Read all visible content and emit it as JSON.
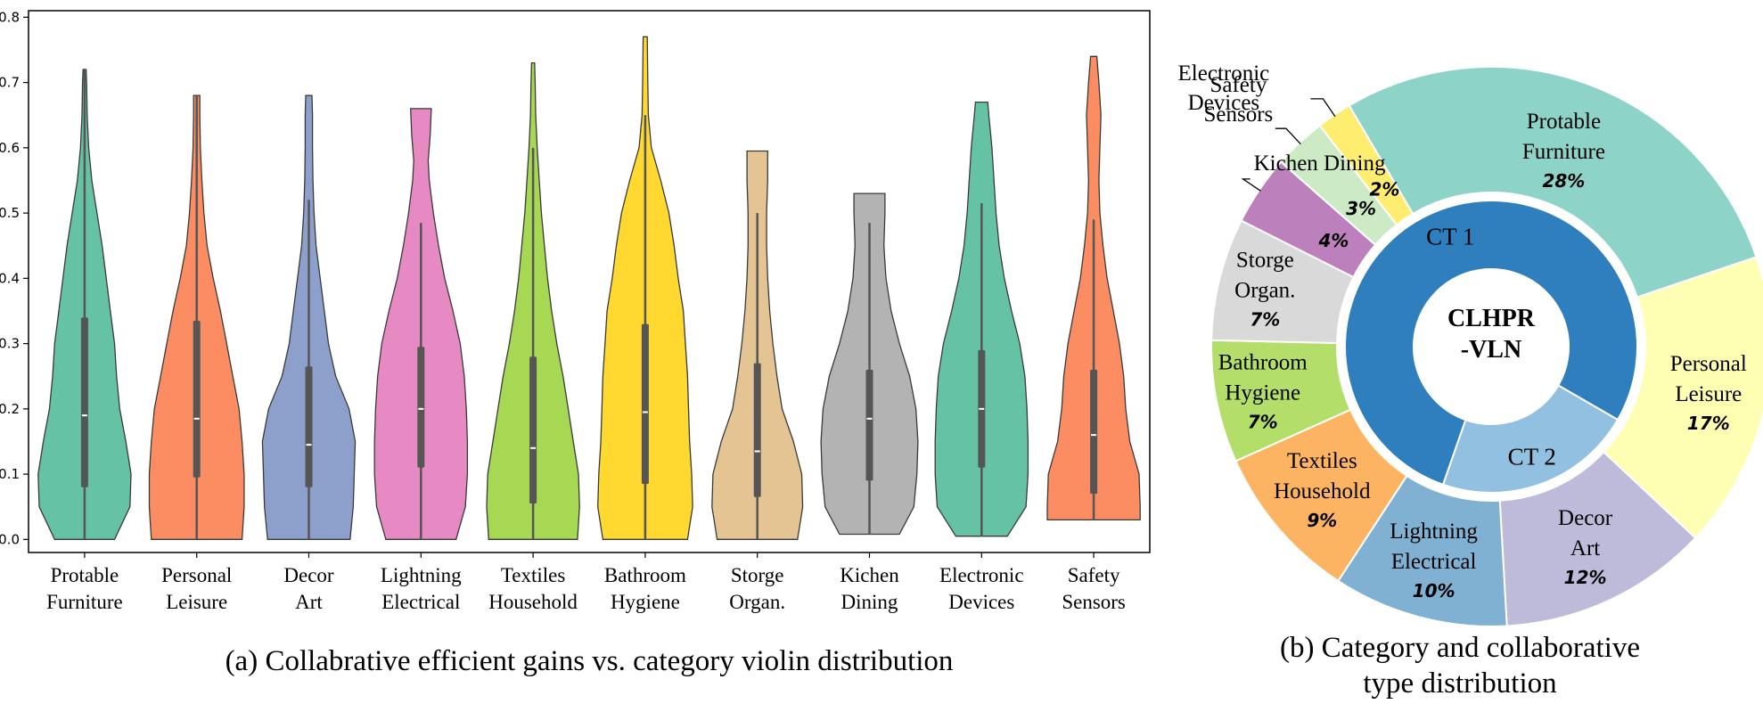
{
  "chart_data": [
    {
      "type": "violin",
      "caption": "(a) Collabrative efficient gains vs. category violin distribution",
      "ylim": [
        -0.02,
        0.81
      ],
      "yticks": [
        "0.0",
        "0.1",
        "0.2",
        "0.3",
        "0.4",
        "0.5",
        "0.6",
        "0.7",
        "0.8"
      ],
      "categories": [
        {
          "label": [
            "Protable",
            "Furniture"
          ],
          "color": "#66c2a5",
          "min": 0.0,
          "max": 0.72,
          "q1": 0.08,
          "q3": 0.34,
          "median": 0.19,
          "whisker_low": 0.0,
          "whisker_high": 0.72,
          "profile": [
            [
              0.0,
              0.58
            ],
            [
              0.05,
              0.88
            ],
            [
              0.1,
              0.9
            ],
            [
              0.15,
              0.8
            ],
            [
              0.2,
              0.68
            ],
            [
              0.25,
              0.62
            ],
            [
              0.3,
              0.58
            ],
            [
              0.35,
              0.5
            ],
            [
              0.4,
              0.42
            ],
            [
              0.45,
              0.34
            ],
            [
              0.5,
              0.24
            ],
            [
              0.55,
              0.14
            ],
            [
              0.6,
              0.08
            ],
            [
              0.65,
              0.05
            ],
            [
              0.7,
              0.04
            ],
            [
              0.72,
              0.03
            ]
          ]
        },
        {
          "label": [
            "Personal",
            "Leisure"
          ],
          "color": "#fc8d62",
          "min": 0.0,
          "max": 0.68,
          "q1": 0.095,
          "q3": 0.335,
          "median": 0.185,
          "whisker_low": 0.0,
          "whisker_high": 0.68,
          "profile": [
            [
              0.0,
              0.88
            ],
            [
              0.05,
              0.92
            ],
            [
              0.1,
              0.92
            ],
            [
              0.15,
              0.88
            ],
            [
              0.2,
              0.82
            ],
            [
              0.25,
              0.7
            ],
            [
              0.3,
              0.58
            ],
            [
              0.35,
              0.46
            ],
            [
              0.4,
              0.32
            ],
            [
              0.45,
              0.2
            ],
            [
              0.5,
              0.14
            ],
            [
              0.55,
              0.1
            ],
            [
              0.6,
              0.07
            ],
            [
              0.65,
              0.06
            ],
            [
              0.68,
              0.06
            ]
          ]
        },
        {
          "label": [
            "Decor",
            "Art"
          ],
          "color": "#8da0cb",
          "min": 0.0,
          "max": 0.68,
          "q1": 0.08,
          "q3": 0.265,
          "median": 0.145,
          "whisker_low": 0.0,
          "whisker_high": 0.52,
          "profile": [
            [
              0.0,
              0.8
            ],
            [
              0.05,
              0.86
            ],
            [
              0.1,
              0.88
            ],
            [
              0.15,
              0.9
            ],
            [
              0.2,
              0.78
            ],
            [
              0.25,
              0.52
            ],
            [
              0.3,
              0.38
            ],
            [
              0.35,
              0.3
            ],
            [
              0.4,
              0.22
            ],
            [
              0.45,
              0.14
            ],
            [
              0.5,
              0.1
            ],
            [
              0.55,
              0.08
            ],
            [
              0.6,
              0.07
            ],
            [
              0.65,
              0.07
            ],
            [
              0.68,
              0.06
            ]
          ]
        },
        {
          "label": [
            "Lightning",
            "Electrical"
          ],
          "color": "#e78ac3",
          "min": 0.0,
          "max": 0.66,
          "q1": 0.11,
          "q3": 0.295,
          "median": 0.2,
          "whisker_low": 0.0,
          "whisker_high": 0.485,
          "profile": [
            [
              0.0,
              0.68
            ],
            [
              0.05,
              0.86
            ],
            [
              0.1,
              0.9
            ],
            [
              0.15,
              0.9
            ],
            [
              0.2,
              0.88
            ],
            [
              0.25,
              0.84
            ],
            [
              0.3,
              0.76
            ],
            [
              0.35,
              0.62
            ],
            [
              0.4,
              0.46
            ],
            [
              0.45,
              0.34
            ],
            [
              0.5,
              0.24
            ],
            [
              0.55,
              0.16
            ],
            [
              0.58,
              0.14
            ],
            [
              0.62,
              0.18
            ],
            [
              0.66,
              0.2
            ]
          ]
        },
        {
          "label": [
            "Textiles",
            "Household"
          ],
          "color": "#a6d854",
          "min": 0.0,
          "max": 0.73,
          "q1": 0.055,
          "q3": 0.28,
          "median": 0.14,
          "whisker_low": 0.0,
          "whisker_high": 0.6,
          "profile": [
            [
              0.0,
              0.86
            ],
            [
              0.05,
              0.9
            ],
            [
              0.1,
              0.88
            ],
            [
              0.15,
              0.78
            ],
            [
              0.2,
              0.68
            ],
            [
              0.25,
              0.58
            ],
            [
              0.3,
              0.46
            ],
            [
              0.35,
              0.36
            ],
            [
              0.4,
              0.28
            ],
            [
              0.45,
              0.22
            ],
            [
              0.5,
              0.16
            ],
            [
              0.55,
              0.12
            ],
            [
              0.6,
              0.08
            ],
            [
              0.65,
              0.05
            ],
            [
              0.7,
              0.04
            ],
            [
              0.73,
              0.03
            ]
          ]
        },
        {
          "label": [
            "Bathroom",
            "Hygiene"
          ],
          "color": "#ffd92f",
          "min": 0.0,
          "max": 0.77,
          "q1": 0.085,
          "q3": 0.33,
          "median": 0.195,
          "whisker_low": 0.0,
          "whisker_high": 0.65,
          "profile": [
            [
              0.0,
              0.82
            ],
            [
              0.05,
              0.92
            ],
            [
              0.1,
              0.9
            ],
            [
              0.15,
              0.86
            ],
            [
              0.2,
              0.84
            ],
            [
              0.25,
              0.82
            ],
            [
              0.3,
              0.78
            ],
            [
              0.35,
              0.74
            ],
            [
              0.4,
              0.64
            ],
            [
              0.45,
              0.56
            ],
            [
              0.5,
              0.46
            ],
            [
              0.55,
              0.3
            ],
            [
              0.6,
              0.12
            ],
            [
              0.65,
              0.06
            ],
            [
              0.7,
              0.05
            ],
            [
              0.77,
              0.04
            ]
          ]
        },
        {
          "label": [
            "Storge",
            "Organ."
          ],
          "color": "#e5c494",
          "min": 0.0,
          "max": 0.595,
          "q1": 0.065,
          "q3": 0.27,
          "median": 0.135,
          "whisker_low": 0.0,
          "whisker_high": 0.5,
          "profile": [
            [
              0.0,
              0.78
            ],
            [
              0.05,
              0.88
            ],
            [
              0.1,
              0.86
            ],
            [
              0.15,
              0.7
            ],
            [
              0.2,
              0.48
            ],
            [
              0.25,
              0.38
            ],
            [
              0.3,
              0.3
            ],
            [
              0.35,
              0.24
            ],
            [
              0.4,
              0.2
            ],
            [
              0.45,
              0.18
            ],
            [
              0.5,
              0.18
            ],
            [
              0.55,
              0.2
            ],
            [
              0.595,
              0.2
            ]
          ]
        },
        {
          "label": [
            "Kichen",
            "Dining"
          ],
          "color": "#b3b3b3",
          "min": 0.008,
          "max": 0.53,
          "q1": 0.09,
          "q3": 0.26,
          "median": 0.185,
          "whisker_low": 0.008,
          "whisker_high": 0.485,
          "profile": [
            [
              0.008,
              0.58
            ],
            [
              0.05,
              0.86
            ],
            [
              0.1,
              0.92
            ],
            [
              0.15,
              0.94
            ],
            [
              0.2,
              0.9
            ],
            [
              0.25,
              0.78
            ],
            [
              0.3,
              0.58
            ],
            [
              0.35,
              0.42
            ],
            [
              0.4,
              0.32
            ],
            [
              0.45,
              0.28
            ],
            [
              0.5,
              0.3
            ],
            [
              0.53,
              0.3
            ]
          ]
        },
        {
          "label": [
            "Electronic",
            "Devices"
          ],
          "color": "#66c2a5",
          "min": 0.005,
          "max": 0.67,
          "q1": 0.11,
          "q3": 0.29,
          "median": 0.2,
          "whisker_low": 0.005,
          "whisker_high": 0.515,
          "profile": [
            [
              0.005,
              0.5
            ],
            [
              0.05,
              0.86
            ],
            [
              0.1,
              0.9
            ],
            [
              0.15,
              0.9
            ],
            [
              0.2,
              0.88
            ],
            [
              0.25,
              0.84
            ],
            [
              0.3,
              0.74
            ],
            [
              0.35,
              0.58
            ],
            [
              0.4,
              0.44
            ],
            [
              0.45,
              0.34
            ],
            [
              0.5,
              0.28
            ],
            [
              0.55,
              0.24
            ],
            [
              0.6,
              0.2
            ],
            [
              0.65,
              0.14
            ],
            [
              0.67,
              0.12
            ]
          ]
        },
        {
          "label": [
            "Safety",
            "Sensors"
          ],
          "color": "#fc8d62",
          "min": 0.03,
          "max": 0.74,
          "q1": 0.07,
          "q3": 0.26,
          "median": 0.16,
          "whisker_low": 0.03,
          "whisker_high": 0.49,
          "profile": [
            [
              0.03,
              0.9
            ],
            [
              0.05,
              0.9
            ],
            [
              0.1,
              0.88
            ],
            [
              0.15,
              0.7
            ],
            [
              0.2,
              0.62
            ],
            [
              0.25,
              0.58
            ],
            [
              0.3,
              0.5
            ],
            [
              0.35,
              0.38
            ],
            [
              0.4,
              0.26
            ],
            [
              0.45,
              0.18
            ],
            [
              0.5,
              0.12
            ],
            [
              0.55,
              0.1
            ],
            [
              0.6,
              0.12
            ],
            [
              0.65,
              0.14
            ],
            [
              0.7,
              0.1
            ],
            [
              0.74,
              0.06
            ]
          ]
        }
      ]
    },
    {
      "type": "pie",
      "caption": [
        "(b) Category and collaborative",
        "type distribution"
      ],
      "center_label": [
        "CLHPR",
        "-VLN"
      ],
      "inner_ring": [
        {
          "label": "CT 1",
          "value": 78,
          "color": "#2f7fbe"
        },
        {
          "label": "CT 2",
          "value": 22,
          "color": "#92c0e0"
        }
      ],
      "outer_ring": [
        {
          "label": [
            "Protable",
            "Furniture"
          ],
          "value": 28,
          "pct": "28%",
          "color": "#8dd3c7"
        },
        {
          "label": [
            "Personal",
            "Leisure"
          ],
          "value": 17,
          "pct": "17%",
          "color": "#ffffb3"
        },
        {
          "label": [
            "Decor",
            "Art"
          ],
          "value": 12,
          "pct": "12%",
          "color": "#bebada"
        },
        {
          "label": [
            "Lightning",
            "Electrical"
          ],
          "value": 10,
          "pct": "10%",
          "color": "#80b1d3"
        },
        {
          "label": [
            "Textiles",
            "Household"
          ],
          "value": 9,
          "pct": "9%",
          "color": "#fdb462"
        },
        {
          "label": [
            "Bathroom",
            "Hygiene"
          ],
          "value": 7,
          "pct": "7%",
          "color": "#b3de69"
        },
        {
          "label": [
            "Storge",
            "Organ."
          ],
          "value": 7,
          "pct": "7%",
          "color": "#d9d9d9"
        },
        {
          "label": [
            "Kichen Dining"
          ],
          "value": 4,
          "pct": "4%",
          "color": "#bc80bd"
        },
        {
          "label": [
            "Electronic",
            "Devices"
          ],
          "value": 3,
          "pct": "3%",
          "color": "#ccebc5"
        },
        {
          "label": [
            "Safety",
            "Sensors"
          ],
          "value": 2,
          "pct": "2%",
          "color": "#ffed6f"
        }
      ]
    }
  ]
}
